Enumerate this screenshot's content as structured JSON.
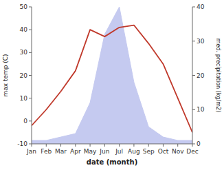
{
  "chart_data": {
    "type": "line",
    "categories": [
      "Jan",
      "Feb",
      "Mar",
      "Apr",
      "May",
      "Jun",
      "Jul",
      "Aug",
      "Sep",
      "Oct",
      "Nov",
      "Dec"
    ],
    "series": [
      {
        "type": "area",
        "axis": "y2",
        "color": "#c5caf0",
        "values": [
          1,
          1,
          2,
          3,
          12,
          32,
          40,
          18,
          5,
          2,
          1,
          1
        ]
      },
      {
        "type": "line",
        "color": "#c0392b",
        "values": [
          -2,
          5,
          13,
          22,
          40,
          37,
          41,
          42,
          34,
          25,
          10,
          -5
        ]
      }
    ],
    "xlabel": "date (month)",
    "ylabel": "max temp (C)",
    "y2label": "med. precipitation (kg/m2)",
    "ylim": [
      -10,
      50
    ],
    "yticks": [
      -10,
      0,
      10,
      20,
      30,
      40,
      50
    ],
    "y2lim": [
      0,
      40
    ],
    "y2ticks": [
      0,
      10,
      20,
      30,
      40
    ],
    "grid": false
  }
}
